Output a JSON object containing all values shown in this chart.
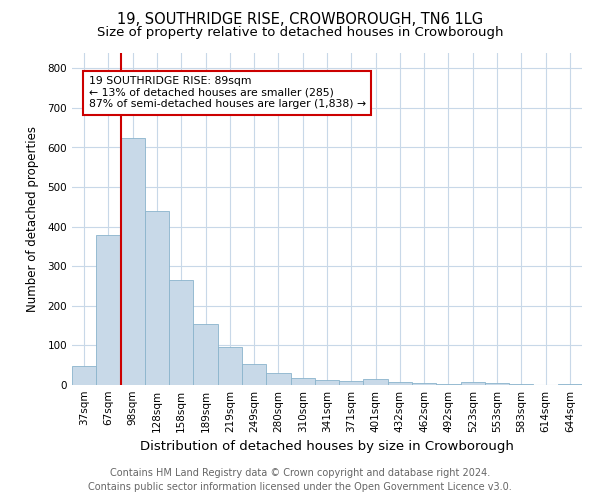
{
  "title": "19, SOUTHRIDGE RISE, CROWBOROUGH, TN6 1LG",
  "subtitle": "Size of property relative to detached houses in Crowborough",
  "xlabel": "Distribution of detached houses by size in Crowborough",
  "ylabel": "Number of detached properties",
  "categories": [
    "37sqm",
    "67sqm",
    "98sqm",
    "128sqm",
    "158sqm",
    "189sqm",
    "219sqm",
    "249sqm",
    "280sqm",
    "310sqm",
    "341sqm",
    "371sqm",
    "401sqm",
    "432sqm",
    "462sqm",
    "492sqm",
    "523sqm",
    "553sqm",
    "583sqm",
    "614sqm",
    "644sqm"
  ],
  "values": [
    47,
    380,
    625,
    440,
    265,
    155,
    95,
    52,
    30,
    18,
    12,
    10,
    15,
    8,
    4,
    2,
    8,
    4,
    2,
    1,
    2
  ],
  "bar_color": "#c8d9e8",
  "bar_edgecolor": "#8ab4cc",
  "property_line_color": "#cc0000",
  "property_line_x": 1.5,
  "annotation_text": "19 SOUTHRIDGE RISE: 89sqm\n← 13% of detached houses are smaller (285)\n87% of semi-detached houses are larger (1,838) →",
  "annotation_box_color": "#ffffff",
  "annotation_box_edgecolor": "#cc0000",
  "ylim": [
    0,
    840
  ],
  "yticks": [
    0,
    100,
    200,
    300,
    400,
    500,
    600,
    700,
    800
  ],
  "background_color": "#ffffff",
  "grid_color": "#c8d8e8",
  "title_fontsize": 10.5,
  "subtitle_fontsize": 9.5,
  "xlabel_fontsize": 9.5,
  "ylabel_fontsize": 8.5,
  "tick_fontsize": 7.5,
  "annotation_fontsize": 7.8,
  "footer_fontsize": 7.0,
  "footer_line1": "Contains HM Land Registry data © Crown copyright and database right 2024.",
  "footer_line2": "Contains public sector information licensed under the Open Government Licence v3.0."
}
